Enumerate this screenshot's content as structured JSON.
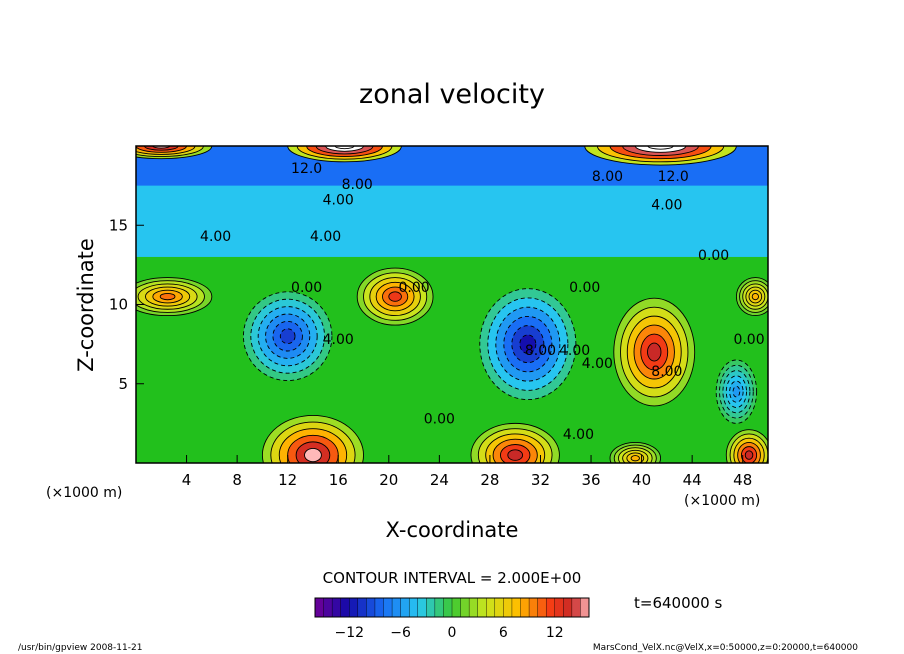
{
  "chart_data": {
    "type": "heatmap",
    "title": "zonal velocity",
    "xlabel": "X-coordinate",
    "ylabel": "Z-coordinate",
    "x_unit": "(×1000 m)",
    "y_unit": "(×1000 m)",
    "xlim": [
      0,
      50
    ],
    "ylim": [
      0,
      20
    ],
    "xticks": [
      4,
      8,
      12,
      16,
      20,
      24,
      28,
      32,
      36,
      40,
      44,
      48
    ],
    "yticks": [
      5,
      10,
      15
    ],
    "contour_interval_text": "CONTOUR INTERVAL = 2.000E+00",
    "time_label": "t=640000 s",
    "colorbar": {
      "range": [
        -16,
        16
      ],
      "ticks": [
        -12,
        -6,
        0,
        6,
        12
      ],
      "tick_labels": [
        "−12",
        "−6",
        "0",
        "6",
        "12"
      ]
    },
    "contour_labels": [
      {
        "text": "12.0",
        "x": 13.5,
        "z": 18.3
      },
      {
        "text": "8.00",
        "x": 17.5,
        "z": 17.3
      },
      {
        "text": "4.00",
        "x": 16.0,
        "z": 16.3
      },
      {
        "text": "4.00",
        "x": 6.3,
        "z": 14.0
      },
      {
        "text": "4.00",
        "x": 15.0,
        "z": 14.0
      },
      {
        "text": "8.00",
        "x": 37.3,
        "z": 17.8
      },
      {
        "text": "12.0",
        "x": 42.5,
        "z": 17.8
      },
      {
        "text": "4.00",
        "x": 42.0,
        "z": 16.0
      },
      {
        "text": "0.00",
        "x": 45.7,
        "z": 12.8
      },
      {
        "text": "0.00",
        "x": 13.5,
        "z": 10.8
      },
      {
        "text": "0.00",
        "x": 22.0,
        "z": 10.8
      },
      {
        "text": "0.00",
        "x": 35.5,
        "z": 10.8
      },
      {
        "text": "4.00",
        "x": 16.0,
        "z": 7.5
      },
      {
        "text": "8.00",
        "x": 32.0,
        "z": 6.8
      },
      {
        "text": "4.00",
        "x": 34.7,
        "z": 6.8
      },
      {
        "text": "4.00",
        "x": 36.5,
        "z": 6.0
      },
      {
        "text": "8.00",
        "x": 42.0,
        "z": 5.5
      },
      {
        "text": "0.00",
        "x": 48.5,
        "z": 7.5
      },
      {
        "text": "0.00",
        "x": 24.0,
        "z": 2.5
      },
      {
        "text": "4.00",
        "x": 35.0,
        "z": 1.5
      }
    ],
    "features": [
      {
        "kind": "max",
        "x": 41.0,
        "z": 7.0,
        "value": 14.0,
        "rx": 3.2,
        "rz": 3.4
      },
      {
        "kind": "max",
        "x": 20.5,
        "z": 10.5,
        "value": 12.0,
        "rx": 3.0,
        "rz": 1.8
      },
      {
        "kind": "max",
        "x": 2.5,
        "z": 10.5,
        "value": 10.0,
        "rx": 3.5,
        "rz": 1.2
      },
      {
        "kind": "max",
        "x": 49.0,
        "z": 10.5,
        "value": 8.0,
        "rx": 1.5,
        "rz": 1.2
      },
      {
        "kind": "min",
        "x": 12.0,
        "z": 8.0,
        "value": -10.0,
        "rx": 3.5,
        "rz": 2.8
      },
      {
        "kind": "min",
        "x": 31.0,
        "z": 7.5,
        "value": -12.0,
        "rx": 3.8,
        "rz": 3.5
      },
      {
        "kind": "min",
        "x": 47.5,
        "z": 4.5,
        "value": -6.0,
        "rx": 1.6,
        "rz": 2.0
      },
      {
        "kind": "max",
        "x": 14.0,
        "z": 0.5,
        "value": 16.0,
        "rx": 4.0,
        "rz": 2.5
      },
      {
        "kind": "max",
        "x": 30.0,
        "z": 0.5,
        "value": 14.0,
        "rx": 3.5,
        "rz": 2.0
      },
      {
        "kind": "max",
        "x": 48.5,
        "z": 0.5,
        "value": 14.0,
        "rx": 1.8,
        "rz": 1.6
      },
      {
        "kind": "max",
        "x": 39.5,
        "z": 0.3,
        "value": 8.0,
        "rx": 2.0,
        "rz": 1.0
      },
      {
        "kind": "max",
        "x": 16.5,
        "z": 20.0,
        "value": 22.0,
        "rx": 4.5,
        "rz": 1.0
      },
      {
        "kind": "max",
        "x": 41.5,
        "z": 20.0,
        "value": 22.0,
        "rx": 6.0,
        "rz": 1.2
      },
      {
        "kind": "max",
        "x": 2.0,
        "z": 20.0,
        "value": 16.0,
        "rx": 4.0,
        "rz": 0.8
      }
    ]
  },
  "footer": {
    "left": "/usr/bin/gpview  2008-11-21",
    "right": "MarsCond_VelX.nc@VelX,x=0:50000,z=0:20000,t=640000"
  }
}
